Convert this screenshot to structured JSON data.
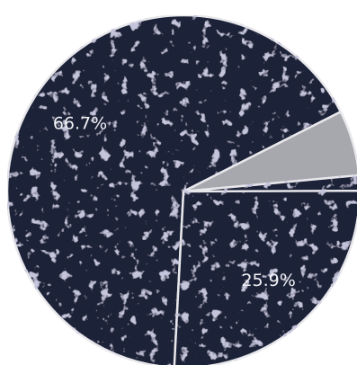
{
  "chart_data": {
    "type": "pie",
    "values": [
      66.7,
      6.0,
      1.4,
      25.9
    ],
    "value_labels": [
      "66.7%",
      null,
      null,
      "25.9%"
    ],
    "colors": [
      "#1f2339",
      "#a7a8ad",
      "#1f2339",
      "#1f2339"
    ]
  }
}
